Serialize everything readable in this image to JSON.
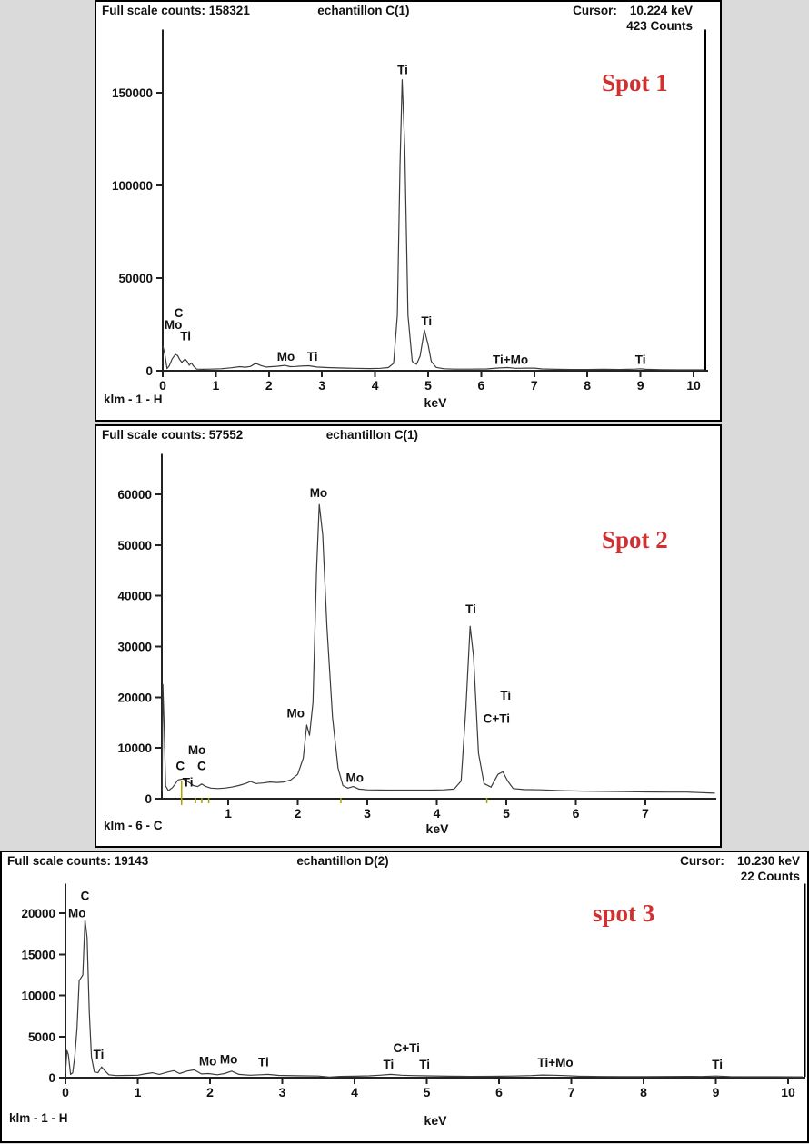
{
  "colors": {
    "spot_red": "#d03030",
    "curve": "#3c3c3c",
    "axis": "#222222",
    "klm_marker": "#a8a400",
    "panel_bg": "#ffffff",
    "page_bg": "#dadada"
  },
  "panels": [
    {
      "full_scale": "Full scale counts: 158321",
      "sample": "echantillon C(1)",
      "cursor_label": "Cursor:",
      "cursor_value": "10.224 keV",
      "cursor_counts": "423 Counts",
      "spot": "Spot 1",
      "footer_left": "klm - 1 - H",
      "x_unit": "keV"
    },
    {
      "full_scale": "Full scale counts: 57552",
      "sample": "echantillon C(1)",
      "cursor_label": "",
      "cursor_value": "",
      "cursor_counts": "",
      "spot": "Spot 2",
      "footer_left": "klm - 6 - C",
      "x_unit": "keV"
    },
    {
      "full_scale": "Full scale counts: 19143",
      "sample": "echantillon D(2)",
      "cursor_label": "Cursor:",
      "cursor_value": "10.230 keV",
      "cursor_counts": "22 Counts",
      "spot": "spot 3",
      "footer_left": "klm - 1 - H",
      "x_unit": "keV"
    }
  ],
  "chart_data": [
    {
      "type": "line",
      "title": "echantillon C(1) — Spot 1",
      "xlabel": "keV",
      "ylabel": "",
      "full_scale_counts": 158321,
      "cursor_kev": 10.224,
      "cursor_counts": 423,
      "x_range": [
        0,
        10.27
      ],
      "y_range": [
        0,
        184000
      ],
      "x_ticks": [
        0,
        1,
        2,
        3,
        4,
        5,
        6,
        7,
        8,
        9,
        10
      ],
      "y_ticks": [
        0,
        50000,
        100000,
        150000
      ],
      "annotations": [
        {
          "text": "C",
          "x": 0.3,
          "y": 29000
        },
        {
          "text": "Mo",
          "x": 0.2,
          "y": 22500
        },
        {
          "text": "Ti",
          "x": 0.43,
          "y": 16500
        },
        {
          "text": "Mo",
          "x": 2.32,
          "y": 5500
        },
        {
          "text": "Ti",
          "x": 2.82,
          "y": 5500
        },
        {
          "text": "Ti",
          "x": 4.52,
          "y": 160000
        },
        {
          "text": "Ti",
          "x": 4.97,
          "y": 24500
        },
        {
          "text": "Ti+Mo",
          "x": 6.55,
          "y": 3600
        },
        {
          "text": "Ti",
          "x": 9.0,
          "y": 3600
        }
      ],
      "spectrum": [
        [
          0.0,
          13500
        ],
        [
          0.04,
          9000
        ],
        [
          0.08,
          1200
        ],
        [
          0.12,
          2500
        ],
        [
          0.18,
          6500
        ],
        [
          0.24,
          8800
        ],
        [
          0.28,
          8200
        ],
        [
          0.32,
          6000
        ],
        [
          0.36,
          4500
        ],
        [
          0.42,
          6300
        ],
        [
          0.46,
          5000
        ],
        [
          0.5,
          3000
        ],
        [
          0.54,
          4200
        ],
        [
          0.58,
          2500
        ],
        [
          0.64,
          900
        ],
        [
          0.75,
          800
        ],
        [
          0.9,
          900
        ],
        [
          1.1,
          1100
        ],
        [
          1.3,
          1600
        ],
        [
          1.45,
          2200
        ],
        [
          1.55,
          1900
        ],
        [
          1.65,
          2300
        ],
        [
          1.75,
          4000
        ],
        [
          1.85,
          2800
        ],
        [
          1.95,
          2000
        ],
        [
          2.05,
          2200
        ],
        [
          2.15,
          2400
        ],
        [
          2.3,
          2900
        ],
        [
          2.4,
          2200
        ],
        [
          2.5,
          2300
        ],
        [
          2.6,
          2500
        ],
        [
          2.75,
          2700
        ],
        [
          2.9,
          2000
        ],
        [
          3.1,
          1700
        ],
        [
          3.3,
          1500
        ],
        [
          3.6,
          1300
        ],
        [
          3.9,
          1200
        ],
        [
          4.1,
          1300
        ],
        [
          4.25,
          1700
        ],
        [
          4.35,
          4000
        ],
        [
          4.42,
          30000
        ],
        [
          4.47,
          110000
        ],
        [
          4.51,
          157000
        ],
        [
          4.56,
          120000
        ],
        [
          4.62,
          30000
        ],
        [
          4.7,
          5000
        ],
        [
          4.78,
          3500
        ],
        [
          4.85,
          8000
        ],
        [
          4.93,
          22000
        ],
        [
          5.0,
          14000
        ],
        [
          5.06,
          5000
        ],
        [
          5.15,
          1800
        ],
        [
          5.3,
          1100
        ],
        [
          5.5,
          900
        ],
        [
          5.8,
          900
        ],
        [
          6.1,
          1000
        ],
        [
          6.35,
          1500
        ],
        [
          6.5,
          1700
        ],
        [
          6.65,
          1300
        ],
        [
          6.85,
          1400
        ],
        [
          7.0,
          1400
        ],
        [
          7.15,
          1000
        ],
        [
          7.4,
          800
        ],
        [
          7.7,
          700
        ],
        [
          8.0,
          700
        ],
        [
          8.3,
          800
        ],
        [
          8.6,
          700
        ],
        [
          8.9,
          900
        ],
        [
          9.0,
          1100
        ],
        [
          9.1,
          800
        ],
        [
          9.4,
          600
        ],
        [
          9.7,
          500
        ],
        [
          10.0,
          500
        ],
        [
          10.2,
          500
        ]
      ]
    },
    {
      "type": "line",
      "title": "echantillon C(1) — Spot 2",
      "xlabel": "keV",
      "ylabel": "",
      "full_scale_counts": 57552,
      "cursor_kev": null,
      "x_range": [
        0.05,
        8.02
      ],
      "y_range": [
        0,
        68000
      ],
      "x_ticks": [
        1,
        2,
        3,
        4,
        5,
        6,
        7
      ],
      "y_ticks": [
        0,
        10000,
        20000,
        30000,
        40000,
        50000,
        60000
      ],
      "klm_markers": [
        {
          "x": 0.33,
          "tall": true
        },
        {
          "x": 0.53
        },
        {
          "x": 0.62
        },
        {
          "x": 0.72
        },
        {
          "x": 2.62
        },
        {
          "x": 4.72
        }
      ],
      "annotations": [
        {
          "text": "C",
          "x": 0.31,
          "y": 5600
        },
        {
          "text": "Ti",
          "x": 0.42,
          "y": 2400
        },
        {
          "text": "Mo",
          "x": 0.55,
          "y": 8800
        },
        {
          "text": "C",
          "x": 0.62,
          "y": 5600
        },
        {
          "text": "Mo",
          "x": 1.97,
          "y": 16000
        },
        {
          "text": "Mo",
          "x": 2.3,
          "y": 59500
        },
        {
          "text": "Mo",
          "x": 2.82,
          "y": 3300
        },
        {
          "text": "Ti",
          "x": 4.49,
          "y": 36500
        },
        {
          "text": "C+Ti",
          "x": 4.86,
          "y": 15000
        },
        {
          "text": "Ti",
          "x": 4.99,
          "y": 19500
        }
      ],
      "spectrum": [
        [
          0.05,
          1500
        ],
        [
          0.06,
          22500
        ],
        [
          0.08,
          14000
        ],
        [
          0.1,
          2500
        ],
        [
          0.14,
          1600
        ],
        [
          0.2,
          2200
        ],
        [
          0.28,
          3700
        ],
        [
          0.35,
          3900
        ],
        [
          0.42,
          3400
        ],
        [
          0.5,
          2600
        ],
        [
          0.56,
          2400
        ],
        [
          0.62,
          2900
        ],
        [
          0.68,
          2400
        ],
        [
          0.75,
          2100
        ],
        [
          0.85,
          2000
        ],
        [
          0.95,
          2100
        ],
        [
          1.05,
          2300
        ],
        [
          1.15,
          2600
        ],
        [
          1.25,
          3000
        ],
        [
          1.32,
          3400
        ],
        [
          1.4,
          3000
        ],
        [
          1.5,
          3100
        ],
        [
          1.6,
          3300
        ],
        [
          1.7,
          3200
        ],
        [
          1.8,
          3300
        ],
        [
          1.9,
          3700
        ],
        [
          2.0,
          4800
        ],
        [
          2.08,
          8000
        ],
        [
          2.13,
          14500
        ],
        [
          2.17,
          12500
        ],
        [
          2.22,
          19000
        ],
        [
          2.27,
          45000
        ],
        [
          2.31,
          58000
        ],
        [
          2.36,
          52000
        ],
        [
          2.42,
          34000
        ],
        [
          2.5,
          16000
        ],
        [
          2.58,
          6000
        ],
        [
          2.65,
          2600
        ],
        [
          2.72,
          2100
        ],
        [
          2.8,
          2400
        ],
        [
          2.88,
          1900
        ],
        [
          3.0,
          1750
        ],
        [
          3.3,
          1700
        ],
        [
          3.6,
          1700
        ],
        [
          3.9,
          1700
        ],
        [
          4.1,
          1750
        ],
        [
          4.25,
          1900
        ],
        [
          4.35,
          3500
        ],
        [
          4.42,
          18000
        ],
        [
          4.48,
          34000
        ],
        [
          4.53,
          28000
        ],
        [
          4.6,
          9000
        ],
        [
          4.68,
          3000
        ],
        [
          4.78,
          2300
        ],
        [
          4.88,
          4800
        ],
        [
          4.95,
          5300
        ],
        [
          5.02,
          3500
        ],
        [
          5.1,
          2000
        ],
        [
          5.25,
          1800
        ],
        [
          5.5,
          1750
        ],
        [
          5.8,
          1600
        ],
        [
          6.1,
          1500
        ],
        [
          6.4,
          1450
        ],
        [
          6.7,
          1400
        ],
        [
          7.0,
          1350
        ],
        [
          7.3,
          1300
        ],
        [
          7.6,
          1300
        ],
        [
          8.0,
          1100
        ]
      ]
    },
    {
      "type": "line",
      "title": "echantillon D(2) — spot 3",
      "xlabel": "keV",
      "ylabel": "",
      "full_scale_counts": 19143,
      "cursor_kev": 10.23,
      "cursor_counts": 22,
      "x_range": [
        0,
        10.24
      ],
      "y_range": [
        0,
        23600
      ],
      "x_ticks": [
        0,
        1,
        2,
        3,
        4,
        5,
        6,
        7,
        8,
        9,
        10
      ],
      "y_ticks": [
        0,
        5000,
        10000,
        15000,
        20000
      ],
      "annotations": [
        {
          "text": "C",
          "x": 0.27,
          "y": 21600
        },
        {
          "text": "Mo",
          "x": 0.16,
          "y": 19500
        },
        {
          "text": "Ti",
          "x": 0.46,
          "y": 2300
        },
        {
          "text": "Mo",
          "x": 1.97,
          "y": 1500
        },
        {
          "text": "Mo",
          "x": 2.26,
          "y": 1700
        },
        {
          "text": "Ti",
          "x": 2.74,
          "y": 1400
        },
        {
          "text": "Ti",
          "x": 4.47,
          "y": 1100
        },
        {
          "text": "C+Ti",
          "x": 4.72,
          "y": 3100
        },
        {
          "text": "Ti",
          "x": 4.97,
          "y": 1100
        },
        {
          "text": "Ti+Mo",
          "x": 6.78,
          "y": 1300
        },
        {
          "text": "Ti",
          "x": 9.02,
          "y": 1100
        }
      ],
      "spectrum": [
        [
          0.0,
          500
        ],
        [
          0.02,
          3300
        ],
        [
          0.04,
          2800
        ],
        [
          0.07,
          400
        ],
        [
          0.1,
          600
        ],
        [
          0.13,
          2600
        ],
        [
          0.16,
          6000
        ],
        [
          0.19,
          11800
        ],
        [
          0.22,
          12200
        ],
        [
          0.24,
          12500
        ],
        [
          0.27,
          19200
        ],
        [
          0.3,
          17000
        ],
        [
          0.33,
          8000
        ],
        [
          0.36,
          2500
        ],
        [
          0.4,
          700
        ],
        [
          0.45,
          600
        ],
        [
          0.5,
          1300
        ],
        [
          0.54,
          900
        ],
        [
          0.6,
          350
        ],
        [
          0.7,
          250
        ],
        [
          0.85,
          280
        ],
        [
          1.0,
          300
        ],
        [
          1.1,
          450
        ],
        [
          1.2,
          600
        ],
        [
          1.3,
          400
        ],
        [
          1.42,
          700
        ],
        [
          1.5,
          850
        ],
        [
          1.58,
          500
        ],
        [
          1.68,
          800
        ],
        [
          1.78,
          950
        ],
        [
          1.88,
          450
        ],
        [
          1.98,
          500
        ],
        [
          2.1,
          350
        ],
        [
          2.2,
          500
        ],
        [
          2.3,
          800
        ],
        [
          2.4,
          400
        ],
        [
          2.55,
          300
        ],
        [
          2.7,
          350
        ],
        [
          2.8,
          400
        ],
        [
          2.95,
          280
        ],
        [
          3.2,
          230
        ],
        [
          3.5,
          200
        ],
        [
          3.65,
          80
        ],
        [
          3.8,
          150
        ],
        [
          4.0,
          180
        ],
        [
          4.2,
          220
        ],
        [
          4.35,
          300
        ],
        [
          4.5,
          400
        ],
        [
          4.65,
          300
        ],
        [
          4.8,
          250
        ],
        [
          5.0,
          220
        ],
        [
          5.3,
          180
        ],
        [
          5.6,
          160
        ],
        [
          5.9,
          170
        ],
        [
          6.2,
          200
        ],
        [
          6.45,
          250
        ],
        [
          6.6,
          320
        ],
        [
          6.75,
          300
        ],
        [
          6.9,
          250
        ],
        [
          7.1,
          180
        ],
        [
          7.4,
          140
        ],
        [
          7.7,
          130
        ],
        [
          8.0,
          130
        ],
        [
          8.3,
          140
        ],
        [
          8.6,
          160
        ],
        [
          8.8,
          140
        ],
        [
          9.0,
          200
        ],
        [
          9.2,
          130
        ],
        [
          9.5,
          110
        ],
        [
          9.8,
          110
        ],
        [
          10.1,
          100
        ],
        [
          10.2,
          100
        ]
      ]
    }
  ]
}
